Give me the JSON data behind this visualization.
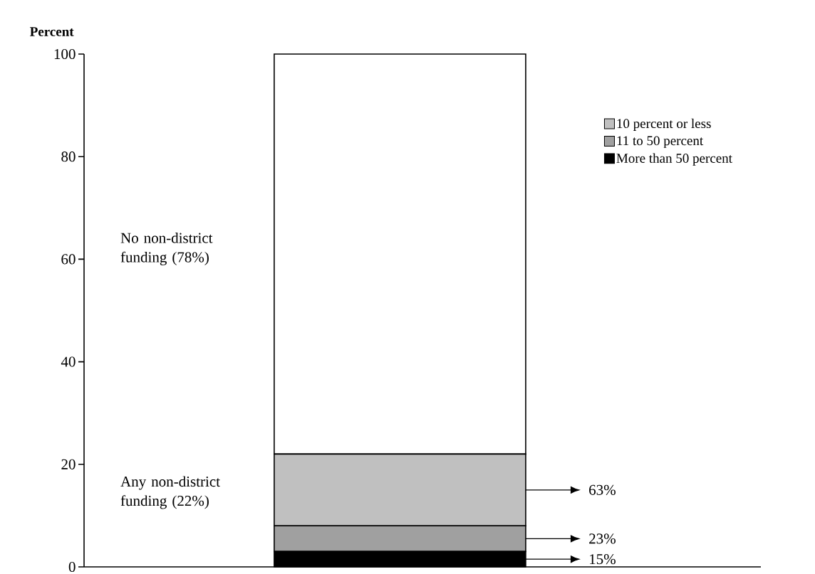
{
  "chart_data": {
    "type": "bar",
    "stacked": true,
    "ylabel": "Percent",
    "categories": [
      null
    ],
    "series": [
      {
        "name": "More than 50 percent",
        "color": "#000000",
        "values": [
          3
        ]
      },
      {
        "name": "11 to 50 percent",
        "color": "#a0a0a0",
        "values": [
          5
        ]
      },
      {
        "name": "10 percent or less",
        "color": "#c0c0c0",
        "values": [
          14
        ]
      },
      {
        "color": "#ffffff",
        "values": [
          78
        ]
      }
    ],
    "ylim": [
      0,
      100
    ],
    "yticks": [
      0,
      20,
      40,
      60,
      80,
      100
    ],
    "legend": "top right",
    "grid": false,
    "annotations": [
      "No non-district funding (78%)",
      "Any non-district funding (22%)",
      "63%",
      "23%",
      "15%"
    ]
  }
}
